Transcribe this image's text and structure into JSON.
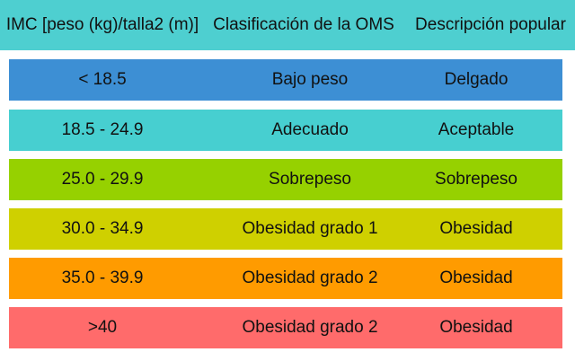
{
  "header": {
    "imc": "IMC [peso (kg)/talla2 (m)]",
    "oms": "Clasificación de la OMS",
    "popular": "Descripción popular"
  },
  "colors": {
    "header": "#4ecfd0",
    "rows": [
      "#3d8fd4",
      "#47cfd0",
      "#96d100",
      "#cfd000",
      "#ff9b00",
      "#ff6b6b"
    ]
  },
  "rows": [
    {
      "imc": "< 18.5",
      "oms": "Bajo peso",
      "popular": "Delgado"
    },
    {
      "imc": "18.5 - 24.9",
      "oms": "Adecuado",
      "popular": "Aceptable"
    },
    {
      "imc": "25.0 - 29.9",
      "oms": "Sobrepeso",
      "popular": "Sobrepeso"
    },
    {
      "imc": "30.0 - 34.9",
      "oms": "Obesidad grado 1",
      "popular": "Obesidad"
    },
    {
      "imc": "35.0 - 39.9",
      "oms": "Obesidad grado 2",
      "popular": "Obesidad"
    },
    {
      "imc": ">40",
      "oms": "Obesidad grado 2",
      "popular": "Obesidad"
    }
  ]
}
